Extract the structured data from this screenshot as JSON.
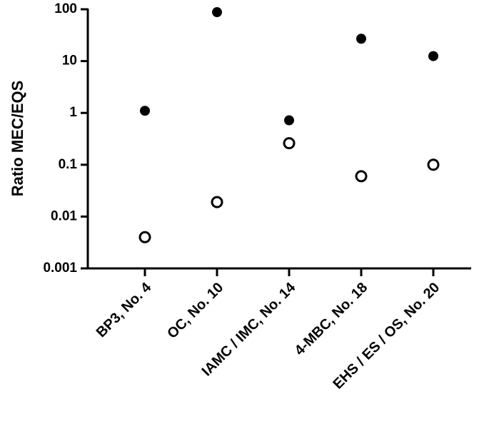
{
  "chart_data": {
    "type": "scatter",
    "title": "",
    "xlabel": "",
    "ylabel": "Ratio MEC/EQS",
    "yscale": "log",
    "ylim": [
      0.001,
      100
    ],
    "yticks": [
      "0.001",
      "0.01",
      "0.1",
      "1",
      "10",
      "100"
    ],
    "ytick_values": [
      0.001,
      0.01,
      0.1,
      1,
      10,
      100
    ],
    "categories": [
      "BP3, No. 4",
      "OC, No. 10",
      "IAMC / IMC, No. 14",
      "4-MBC, No. 18",
      "EHS / ES / OS, No. 20"
    ],
    "grid": false,
    "series": [
      {
        "marker": "filled-circle",
        "color": "#000000",
        "values": [
          1.1,
          88,
          0.72,
          27,
          12.5
        ]
      },
      {
        "marker": "open-circle",
        "color": "#000000",
        "values": [
          0.004,
          0.019,
          0.26,
          0.06,
          0.1
        ]
      }
    ]
  }
}
